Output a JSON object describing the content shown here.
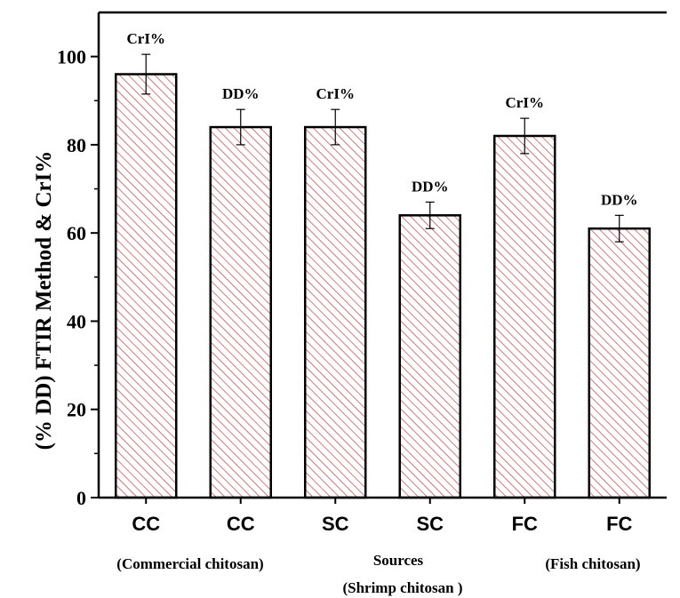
{
  "chart_data": {
    "type": "bar",
    "categories": [
      "CC",
      "CC",
      "SC",
      "SC",
      "FC",
      "FC"
    ],
    "values": [
      96,
      84,
      84,
      64,
      82,
      61
    ],
    "errors": [
      4.5,
      4,
      4,
      3,
      4,
      3
    ],
    "bar_labels": [
      "CrI%",
      "DD%",
      "CrI%",
      "DD%",
      "CrI%",
      "DD%"
    ],
    "group_labels": [
      "(Commercial chitosan)",
      "(Shrimp chitosan )",
      "(Fish chitosan)"
    ],
    "xlabel": "Sources",
    "ylabel": "(% DD) FTIR Method & CrI%",
    "ylim": [
      0,
      110
    ],
    "yticks": [
      0,
      20,
      40,
      60,
      80,
      100
    ],
    "grid": false,
    "colors": {
      "hatch": "#c0303a",
      "bar_fill": "#ffffff",
      "axis": "#000000"
    }
  }
}
